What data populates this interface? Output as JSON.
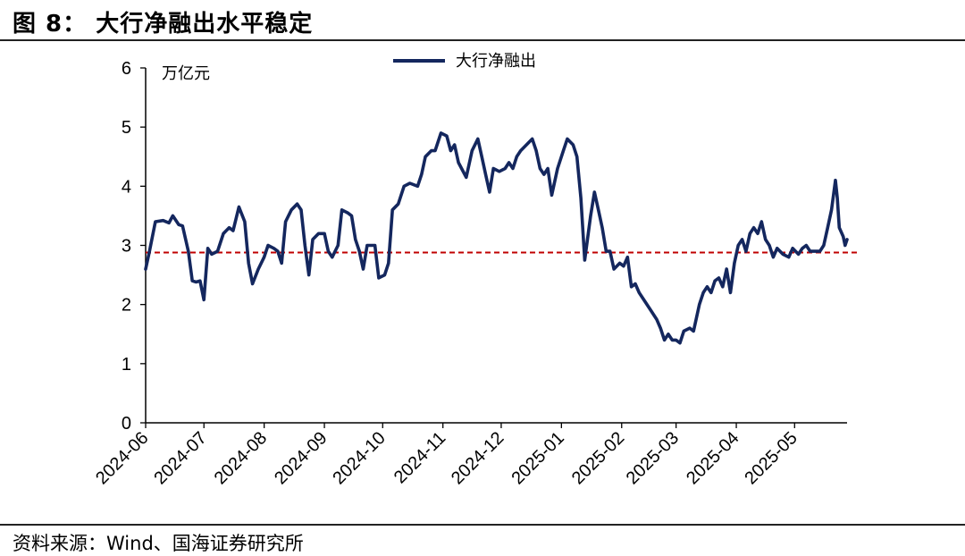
{
  "header": {
    "title": "图 8：  大行净融出水平稳定"
  },
  "footer": {
    "source": "资料来源：Wind、国海证券研究所"
  },
  "colors": {
    "series": "#14275e",
    "reference": "#c00000",
    "axis": "#000000"
  },
  "chart_data": {
    "type": "line",
    "title": "图 8：  大行净融出水平稳定",
    "ylabel": "万亿元",
    "xlabel": "",
    "ylim": [
      0,
      6
    ],
    "yticks": [
      0,
      1,
      2,
      3,
      4,
      5,
      6
    ],
    "x_tick_labels": [
      "2024-06",
      "2024-07",
      "2024-08",
      "2024-09",
      "2024-10",
      "2024-11",
      "2024-12",
      "2025-01",
      "2025-02",
      "2025-03",
      "2025-04",
      "2025-05"
    ],
    "x_range": [
      "2024-06-01",
      "2025-05-28"
    ],
    "legend_position": "top-center",
    "grid": false,
    "reference_line": {
      "y": 2.88,
      "style": "dashed"
    },
    "series": [
      {
        "name": "大行净融出",
        "points": [
          [
            "2024-06-01",
            2.6
          ],
          [
            "2024-06-03",
            2.9
          ],
          [
            "2024-06-06",
            3.4
          ],
          [
            "2024-06-10",
            3.42
          ],
          [
            "2024-06-13",
            3.38
          ],
          [
            "2024-06-15",
            3.5
          ],
          [
            "2024-06-18",
            3.35
          ],
          [
            "2024-06-20",
            3.33
          ],
          [
            "2024-06-23",
            2.9
          ],
          [
            "2024-06-25",
            2.4
          ],
          [
            "2024-06-27",
            2.38
          ],
          [
            "2024-06-29",
            2.4
          ],
          [
            "2024-07-01",
            2.08
          ],
          [
            "2024-07-03",
            2.95
          ],
          [
            "2024-07-05",
            2.85
          ],
          [
            "2024-07-08",
            2.9
          ],
          [
            "2024-07-11",
            3.2
          ],
          [
            "2024-07-14",
            3.3
          ],
          [
            "2024-07-16",
            3.25
          ],
          [
            "2024-07-19",
            3.65
          ],
          [
            "2024-07-22",
            3.4
          ],
          [
            "2024-07-24",
            2.7
          ],
          [
            "2024-07-26",
            2.35
          ],
          [
            "2024-07-29",
            2.6
          ],
          [
            "2024-08-01",
            2.8
          ],
          [
            "2024-08-03",
            3.0
          ],
          [
            "2024-08-06",
            2.95
          ],
          [
            "2024-08-08",
            2.9
          ],
          [
            "2024-08-10",
            2.7
          ],
          [
            "2024-08-12",
            3.4
          ],
          [
            "2024-08-15",
            3.6
          ],
          [
            "2024-08-18",
            3.7
          ],
          [
            "2024-08-20",
            3.6
          ],
          [
            "2024-08-22",
            3.0
          ],
          [
            "2024-08-24",
            2.5
          ],
          [
            "2024-08-26",
            3.1
          ],
          [
            "2024-08-29",
            3.2
          ],
          [
            "2024-09-01",
            3.2
          ],
          [
            "2024-09-03",
            2.9
          ],
          [
            "2024-09-05",
            2.8
          ],
          [
            "2024-09-08",
            3.0
          ],
          [
            "2024-09-10",
            3.6
          ],
          [
            "2024-09-13",
            3.55
          ],
          [
            "2024-09-15",
            3.5
          ],
          [
            "2024-09-17",
            3.1
          ],
          [
            "2024-09-19",
            2.9
          ],
          [
            "2024-09-21",
            2.6
          ],
          [
            "2024-09-23",
            3.0
          ],
          [
            "2024-09-27",
            3.0
          ],
          [
            "2024-09-29",
            2.45
          ],
          [
            "2024-10-02",
            2.5
          ],
          [
            "2024-10-04",
            2.7
          ],
          [
            "2024-10-06",
            3.6
          ],
          [
            "2024-10-09",
            3.7
          ],
          [
            "2024-10-12",
            4.0
          ],
          [
            "2024-10-15",
            4.05
          ],
          [
            "2024-10-19",
            4.0
          ],
          [
            "2024-10-21",
            4.2
          ],
          [
            "2024-10-23",
            4.5
          ],
          [
            "2024-10-26",
            4.6
          ],
          [
            "2024-10-28",
            4.6
          ],
          [
            "2024-10-31",
            4.9
          ],
          [
            "2024-11-03",
            4.85
          ],
          [
            "2024-11-05",
            4.6
          ],
          [
            "2024-11-07",
            4.7
          ],
          [
            "2024-11-09",
            4.4
          ],
          [
            "2024-11-13",
            4.15
          ],
          [
            "2024-11-16",
            4.6
          ],
          [
            "2024-11-19",
            4.8
          ],
          [
            "2024-11-21",
            4.5
          ],
          [
            "2024-11-23",
            4.2
          ],
          [
            "2024-11-25",
            3.9
          ],
          [
            "2024-11-27",
            4.3
          ],
          [
            "2024-11-30",
            4.25
          ],
          [
            "2024-12-03",
            4.3
          ],
          [
            "2024-12-05",
            4.4
          ],
          [
            "2024-12-07",
            4.3
          ],
          [
            "2024-12-09",
            4.5
          ],
          [
            "2024-12-11",
            4.6
          ],
          [
            "2024-12-14",
            4.7
          ],
          [
            "2024-12-17",
            4.8
          ],
          [
            "2024-12-19",
            4.6
          ],
          [
            "2024-12-21",
            4.3
          ],
          [
            "2024-12-23",
            4.2
          ],
          [
            "2024-12-25",
            4.3
          ],
          [
            "2024-12-27",
            3.85
          ],
          [
            "2024-12-30",
            4.3
          ],
          [
            "2025-01-02",
            4.6
          ],
          [
            "2025-01-04",
            4.8
          ],
          [
            "2025-01-07",
            4.7
          ],
          [
            "2025-01-09",
            4.5
          ],
          [
            "2025-01-11",
            3.8
          ],
          [
            "2025-01-13",
            2.75
          ],
          [
            "2025-01-16",
            3.5
          ],
          [
            "2025-01-18",
            3.9
          ],
          [
            "2025-01-20",
            3.6
          ],
          [
            "2025-01-22",
            3.3
          ],
          [
            "2025-01-24",
            2.9
          ],
          [
            "2025-01-26",
            2.9
          ],
          [
            "2025-01-28",
            2.6
          ],
          [
            "2025-01-31",
            2.7
          ],
          [
            "2025-02-02",
            2.65
          ],
          [
            "2025-02-04",
            2.8
          ],
          [
            "2025-02-06",
            2.3
          ],
          [
            "2025-02-08",
            2.35
          ],
          [
            "2025-02-10",
            2.2
          ],
          [
            "2025-02-13",
            2.05
          ],
          [
            "2025-02-16",
            1.9
          ],
          [
            "2025-02-19",
            1.75
          ],
          [
            "2025-02-21",
            1.6
          ],
          [
            "2025-02-23",
            1.4
          ],
          [
            "2025-02-25",
            1.5
          ],
          [
            "2025-02-27",
            1.4
          ],
          [
            "2025-03-01",
            1.4
          ],
          [
            "2025-03-03",
            1.35
          ],
          [
            "2025-03-05",
            1.55
          ],
          [
            "2025-03-08",
            1.6
          ],
          [
            "2025-03-10",
            1.55
          ],
          [
            "2025-03-13",
            2.0
          ],
          [
            "2025-03-15",
            2.2
          ],
          [
            "2025-03-17",
            2.3
          ],
          [
            "2025-03-19",
            2.2
          ],
          [
            "2025-03-21",
            2.4
          ],
          [
            "2025-03-23",
            2.45
          ],
          [
            "2025-03-25",
            2.3
          ],
          [
            "2025-03-27",
            2.6
          ],
          [
            "2025-03-29",
            2.2
          ],
          [
            "2025-03-31",
            2.7
          ],
          [
            "2025-04-02",
            3.0
          ],
          [
            "2025-04-04",
            3.1
          ],
          [
            "2025-04-06",
            2.9
          ],
          [
            "2025-04-08",
            3.2
          ],
          [
            "2025-04-10",
            3.3
          ],
          [
            "2025-04-12",
            3.2
          ],
          [
            "2025-04-14",
            3.4
          ],
          [
            "2025-04-16",
            3.1
          ],
          [
            "2025-04-18",
            3.0
          ],
          [
            "2025-04-20",
            2.8
          ],
          [
            "2025-04-22",
            2.95
          ],
          [
            "2025-04-25",
            2.85
          ],
          [
            "2025-04-28",
            2.8
          ],
          [
            "2025-04-30",
            2.95
          ],
          [
            "2025-05-03",
            2.85
          ],
          [
            "2025-05-05",
            2.95
          ],
          [
            "2025-05-07",
            3.0
          ],
          [
            "2025-05-09",
            2.9
          ],
          [
            "2025-05-11",
            2.9
          ],
          [
            "2025-05-14",
            2.9
          ],
          [
            "2025-05-16",
            3.0
          ],
          [
            "2025-05-18",
            3.3
          ],
          [
            "2025-05-20",
            3.6
          ],
          [
            "2025-05-22",
            4.1
          ],
          [
            "2025-05-23",
            3.8
          ],
          [
            "2025-05-24",
            3.3
          ],
          [
            "2025-05-26",
            3.15
          ],
          [
            "2025-05-27",
            3.0
          ],
          [
            "2025-05-28",
            3.1
          ]
        ]
      }
    ]
  }
}
